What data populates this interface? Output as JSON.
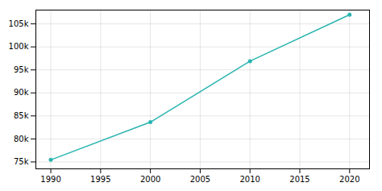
{
  "chart_data": {
    "type": "line",
    "x": [
      1990,
      2000,
      2010,
      2020
    ],
    "values": [
      75450,
      83650,
      96900,
      107000
    ],
    "color": "#2ab5b0",
    "marker": "circle",
    "xlim": [
      1988.5,
      2022
    ],
    "ylim": [
      73500,
      108000
    ],
    "xticks": [
      1990,
      1995,
      2000,
      2005,
      2010,
      2015,
      2020
    ],
    "yticks": [
      {
        "value": 75000,
        "label": "75k"
      },
      {
        "value": 80000,
        "label": "80k"
      },
      {
        "value": 85000,
        "label": "85k"
      },
      {
        "value": 90000,
        "label": "90k"
      },
      {
        "value": 95000,
        "label": "95k"
      },
      {
        "value": 100000,
        "label": "100k"
      },
      {
        "value": 105000,
        "label": "105k"
      }
    ],
    "grid": true
  }
}
